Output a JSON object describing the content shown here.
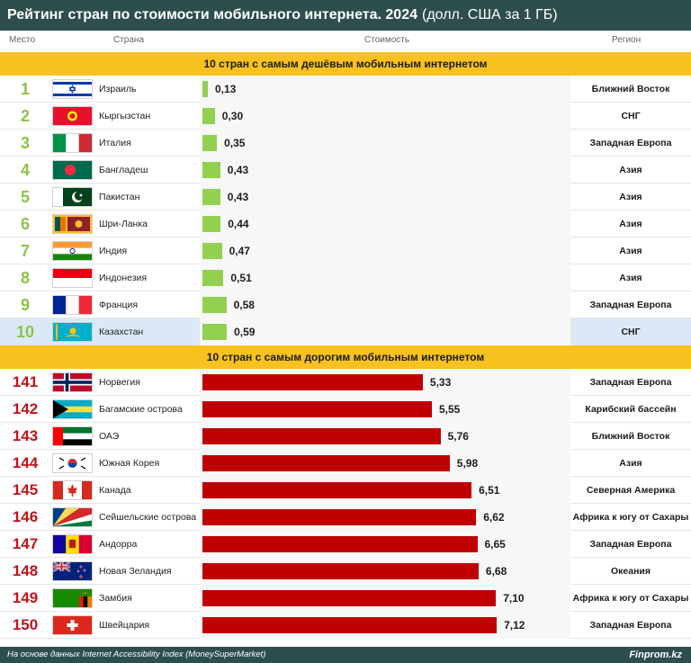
{
  "title": {
    "main": "Рейтинг стран по стоимости мобильного интернета. 2024",
    "sub": "(долл. США за 1 ГБ)"
  },
  "headers": {
    "rank": "Место",
    "country": "Страна",
    "cost": "Стоимость",
    "region": "Регион"
  },
  "colors": {
    "header_bg": "#2d4e4c",
    "banner": "#f7c11f",
    "cheap_bar": "#92d050",
    "expensive_bar": "#c00000",
    "cheap_rank": "#8dc24a",
    "expensive_rank": "#c0141b",
    "highlight_row": "#dbe9f6"
  },
  "chart_data": {
    "type": "bar",
    "orientation": "horizontal",
    "title": "Рейтинг стран по стоимости мобильного интернета. 2024",
    "unit": "долл. США за 1 ГБ",
    "xlim": [
      0,
      7.4
    ],
    "sections": [
      {
        "banner": "10 стран с самым дешёвым мобильным интернетом",
        "kind": "cheap",
        "rows": [
          {
            "rank": "1",
            "country": "Израиль",
            "value": 0.13,
            "label": "0,13",
            "region": "Ближний Восток",
            "flag": "israel-flag"
          },
          {
            "rank": "2",
            "country": "Кыргызстан",
            "value": 0.3,
            "label": "0,30",
            "region": "СНГ",
            "flag": "kyrgyzstan-flag"
          },
          {
            "rank": "3",
            "country": "Италия",
            "value": 0.35,
            "label": "0,35",
            "region": "Западная Европа",
            "flag": "italy-flag"
          },
          {
            "rank": "4",
            "country": "Бангладеш",
            "value": 0.43,
            "label": "0,43",
            "region": "Азия",
            "flag": "bangladesh-flag"
          },
          {
            "rank": "5",
            "country": "Пакистан",
            "value": 0.43,
            "label": "0,43",
            "region": "Азия",
            "flag": "pakistan-flag"
          },
          {
            "rank": "6",
            "country": "Шри-Ланка",
            "value": 0.44,
            "label": "0,44",
            "region": "Азия",
            "flag": "sri-lanka-flag"
          },
          {
            "rank": "7",
            "country": "Индия",
            "value": 0.47,
            "label": "0,47",
            "region": "Азия",
            "flag": "india-flag"
          },
          {
            "rank": "8",
            "country": "Индонезия",
            "value": 0.51,
            "label": "0,51",
            "region": "Азия",
            "flag": "indonesia-flag"
          },
          {
            "rank": "9",
            "country": "Франция",
            "value": 0.58,
            "label": "0,58",
            "region": "Западная Европа",
            "flag": "france-flag"
          },
          {
            "rank": "10",
            "country": "Казахстан",
            "value": 0.59,
            "label": "0,59",
            "region": "СНГ",
            "flag": "kazakhstan-flag",
            "highlight": true
          }
        ]
      },
      {
        "banner": "10 стран с самым дорогим мобильным интернетом",
        "kind": "expensive",
        "rows": [
          {
            "rank": "141",
            "country": "Норвегия",
            "value": 5.33,
            "label": "5,33",
            "region": "Западная Европа",
            "flag": "norway-flag"
          },
          {
            "rank": "142",
            "country": "Багамские острова",
            "value": 5.55,
            "label": "5,55",
            "region": "Карибский бассейн",
            "flag": "bahamas-flag"
          },
          {
            "rank": "143",
            "country": "ОАЭ",
            "value": 5.76,
            "label": "5,76",
            "region": "Ближний Восток",
            "flag": "uae-flag"
          },
          {
            "rank": "144",
            "country": "Южная Корея",
            "value": 5.98,
            "label": "5,98",
            "region": "Азия",
            "flag": "south-korea-flag"
          },
          {
            "rank": "145",
            "country": "Канада",
            "value": 6.51,
            "label": "6,51",
            "region": "Северная Америка",
            "flag": "canada-flag"
          },
          {
            "rank": "146",
            "country": "Сейшельские острова",
            "value": 6.62,
            "label": "6,62",
            "region": "Африка к югу от Сахары",
            "flag": "seychelles-flag"
          },
          {
            "rank": "147",
            "country": "Андорра",
            "value": 6.65,
            "label": "6,65",
            "region": "Западная Европа",
            "flag": "andorra-flag"
          },
          {
            "rank": "148",
            "country": "Новая Зеландия",
            "value": 6.68,
            "label": "6,68",
            "region": "Океания",
            "flag": "new-zealand-flag"
          },
          {
            "rank": "149",
            "country": "Замбия",
            "value": 7.1,
            "label": "7,10",
            "region": "Африка к югу от Сахары",
            "flag": "zambia-flag"
          },
          {
            "rank": "150",
            "country": "Швейцария",
            "value": 7.12,
            "label": "7,12",
            "region": "Западная Европа",
            "flag": "switzerland-flag"
          }
        ]
      }
    ]
  },
  "footer": {
    "source": "На основе данных Internet Accessibility Index (MoneySuperMarket)",
    "brand": "Finprom.kz"
  }
}
